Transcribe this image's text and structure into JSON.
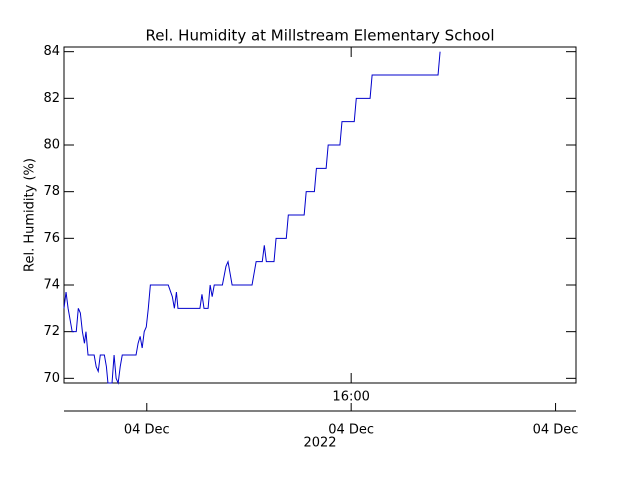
{
  "chart_data": {
    "type": "line",
    "title": "Rel. Humidity at Millstream Elementary School",
    "y_label": "Rel. Humidity (%)",
    "color": "#0000cc",
    "x": [
      10.38,
      10.42,
      10.46,
      10.54,
      10.62,
      10.66,
      10.7,
      10.74,
      10.78,
      10.81,
      10.85,
      10.97,
      11.01,
      11.05,
      11.09,
      11.17,
      11.21,
      11.24,
      11.32,
      11.36,
      11.4,
      11.44,
      11.48,
      11.52,
      11.79,
      11.83,
      11.87,
      11.91,
      11.95,
      11.99,
      12.03,
      12.07,
      12.42,
      12.5,
      12.54,
      12.58,
      12.61,
      13.04,
      13.08,
      13.12,
      13.2,
      13.24,
      13.28,
      13.32,
      13.48,
      13.55,
      13.59,
      13.63,
      13.67,
      14.06,
      14.1,
      14.14,
      14.26,
      14.3,
      14.34,
      14.49,
      14.53,
      14.73,
      14.77,
      15.08,
      15.12,
      15.28,
      15.32,
      15.51,
      15.55,
      15.78,
      15.82,
      16.06,
      16.1,
      16.37,
      16.41,
      17.7,
      17.74
    ],
    "values": [
      73,
      73.7,
      73,
      72,
      72,
      73,
      72.8,
      72,
      71.5,
      72,
      71,
      71,
      70.5,
      70.3,
      71,
      71,
      70.5,
      69.8,
      69.8,
      71,
      70,
      69.8,
      70.5,
      71,
      71,
      71.5,
      71.8,
      71.3,
      72,
      72.2,
      73,
      74,
      74,
      73.5,
      73,
      73.7,
      73,
      73,
      73.6,
      73,
      73,
      74,
      73.5,
      74,
      74,
      74.8,
      75,
      74.5,
      74,
      74,
      74.5,
      75,
      75,
      75.7,
      75,
      75,
      76,
      76,
      77,
      77,
      78,
      78,
      79,
      79,
      80,
      80,
      81,
      81,
      82,
      82,
      83,
      83,
      84
    ],
    "xlim": [
      10.38,
      20.4
    ],
    "xticks": [
      {
        "value": 16,
        "label": "16:00"
      }
    ],
    "date_ticks": [
      {
        "value": 12,
        "label": "04 Dec"
      },
      {
        "value": 16,
        "label": "04 Dec"
      },
      {
        "value": 20,
        "label": "04 Dec"
      }
    ],
    "date_year": "2022",
    "ylim": [
      69.8,
      84.2
    ],
    "yticks": [
      70,
      72,
      74,
      76,
      78,
      80,
      82,
      84
    ]
  }
}
